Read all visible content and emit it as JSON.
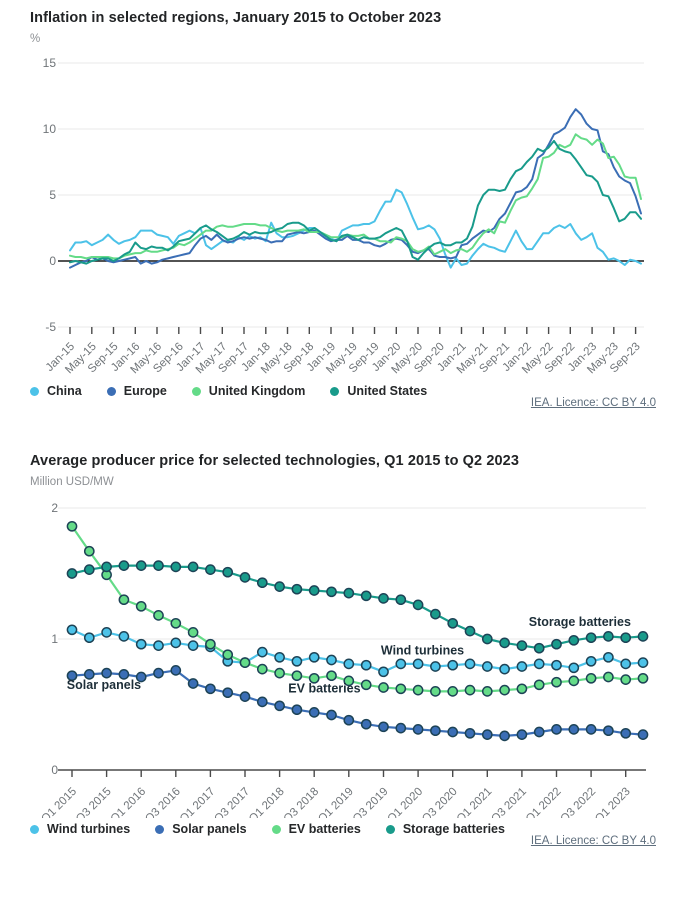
{
  "chart_data": [
    {
      "type": "line",
      "title": "Inflation in selected regions, January 2015 to October 2023",
      "unit": "%",
      "licence": "IEA. Licence: CC BY 4.0",
      "ylim": [
        -5,
        15
      ],
      "yticks": [
        15,
        10,
        5,
        0,
        -5
      ],
      "x_tick_step": 4,
      "n_points": 106,
      "x_labels": [
        "Jan-15",
        "May-15",
        "Sep-15",
        "Jan-16",
        "May-16",
        "Sep-16",
        "Jan-17",
        "May-17",
        "Sep-17",
        "Jan-18",
        "May-18",
        "Sep-18",
        "Jan-19",
        "May-19",
        "Sep-19",
        "Jan-20",
        "May-20",
        "Sep-20",
        "Jan-21",
        "May-21",
        "Sep-21",
        "Jan-22",
        "May-22",
        "Sep-22",
        "Jan-23",
        "May-23",
        "Sep-23"
      ],
      "grid": true,
      "legend_position": "bottom",
      "series": [
        {
          "name": "China",
          "color": "#4CC2E8",
          "values": [
            0.8,
            1.4,
            1.4,
            1.5,
            1.2,
            1.4,
            1.6,
            2.0,
            1.6,
            1.3,
            1.5,
            1.6,
            1.8,
            2.3,
            2.3,
            2.3,
            2.0,
            1.9,
            1.8,
            1.3,
            1.9,
            2.1,
            2.3,
            2.1,
            2.5,
            1.2,
            0.9,
            1.2,
            1.5,
            1.5,
            1.4,
            1.8,
            1.6,
            1.9,
            1.7,
            1.8,
            1.5,
            2.9,
            2.1,
            1.8,
            1.8,
            1.9,
            2.1,
            2.3,
            2.5,
            2.5,
            2.2,
            1.9,
            1.7,
            1.5,
            2.3,
            2.5,
            2.7,
            2.7,
            2.8,
            2.8,
            3.0,
            3.8,
            4.5,
            4.5,
            5.4,
            5.2,
            4.3,
            3.3,
            2.4,
            2.5,
            2.7,
            2.4,
            1.7,
            0.5,
            -0.5,
            0.2,
            -0.3,
            -0.2,
            0.4,
            0.9,
            1.3,
            1.1,
            1.0,
            0.8,
            0.7,
            1.5,
            2.3,
            1.5,
            0.9,
            0.9,
            1.5,
            2.1,
            2.1,
            2.5,
            2.7,
            2.5,
            2.8,
            2.1,
            1.6,
            1.8,
            2.1,
            1.0,
            0.7,
            0.1,
            0.2,
            0.0,
            -0.3,
            0.1,
            0.0,
            -0.2
          ]
        },
        {
          "name": "Europe",
          "color": "#3B6EB5",
          "values": [
            -0.5,
            -0.3,
            -0.1,
            0.0,
            0.3,
            0.1,
            0.2,
            0.0,
            -0.1,
            0.0,
            0.1,
            0.2,
            0.3,
            -0.2,
            0.0,
            -0.2,
            -0.1,
            0.1,
            0.2,
            0.3,
            0.4,
            0.5,
            0.6,
            1.2,
            1.7,
            1.9,
            1.6,
            2.0,
            1.6,
            1.4,
            1.5,
            1.7,
            1.8,
            1.7,
            1.8,
            1.7,
            1.6,
            1.4,
            1.5,
            1.5,
            2.0,
            2.1,
            2.2,
            2.1,
            2.2,
            2.3,
            2.0,
            1.7,
            1.5,
            1.6,
            1.6,
            1.9,
            1.6,
            1.6,
            1.4,
            1.4,
            1.2,
            1.1,
            1.3,
            1.6,
            1.7,
            1.6,
            1.2,
            0.7,
            0.6,
            0.8,
            0.9,
            0.4,
            0.3,
            0.3,
            0.2,
            0.3,
            1.2,
            1.3,
            1.7,
            2.0,
            2.3,
            2.2,
            2.5,
            3.2,
            3.6,
            4.4,
            5.2,
            5.3,
            5.6,
            6.2,
            7.8,
            8.1,
            8.8,
            9.6,
            9.8,
            10.1,
            10.9,
            11.5,
            11.1,
            10.4,
            10.0,
            9.9,
            8.3,
            8.1,
            7.1,
            6.4,
            6.1,
            5.9,
            4.9,
            3.6
          ]
        },
        {
          "name": "United Kingdom",
          "color": "#64DB88",
          "values": [
            0.4,
            0.3,
            0.3,
            0.2,
            0.3,
            0.3,
            0.3,
            0.3,
            0.2,
            0.2,
            0.4,
            0.5,
            0.6,
            0.6,
            0.8,
            0.7,
            0.7,
            0.8,
            0.9,
            1.0,
            1.3,
            1.2,
            1.4,
            1.7,
            2.0,
            2.3,
            2.3,
            2.6,
            2.7,
            2.6,
            2.6,
            2.7,
            2.8,
            2.8,
            2.8,
            2.7,
            2.7,
            2.5,
            2.3,
            2.2,
            2.3,
            2.3,
            2.3,
            2.4,
            2.2,
            2.2,
            2.2,
            2.0,
            1.8,
            1.8,
            1.8,
            2.0,
            1.9,
            1.9,
            2.0,
            1.7,
            1.7,
            1.5,
            1.5,
            1.4,
            1.8,
            1.7,
            1.5,
            0.9,
            0.7,
            0.8,
            1.1,
            0.5,
            0.7,
            0.9,
            0.6,
            0.8,
            0.9,
            0.7,
            1.0,
            1.6,
            2.1,
            2.4,
            2.1,
            3.0,
            2.9,
            3.8,
            4.6,
            4.8,
            4.9,
            5.5,
            6.2,
            7.8,
            7.9,
            8.2,
            8.8,
            8.6,
            8.8,
            9.6,
            9.3,
            9.2,
            8.8,
            9.2,
            8.9,
            7.8,
            7.9,
            7.3,
            6.4,
            6.3,
            6.3,
            4.7
          ]
        },
        {
          "name": "United States",
          "color": "#199B8B",
          "values": [
            -0.1,
            0.0,
            -0.1,
            -0.2,
            0.0,
            0.1,
            0.2,
            0.2,
            0.0,
            0.2,
            0.5,
            0.7,
            1.4,
            1.0,
            0.9,
            1.1,
            1.0,
            1.0,
            0.8,
            1.1,
            1.5,
            1.6,
            1.7,
            2.1,
            2.5,
            2.7,
            2.4,
            2.2,
            1.9,
            1.6,
            1.7,
            1.9,
            2.2,
            2.0,
            2.2,
            2.1,
            2.1,
            2.2,
            2.4,
            2.5,
            2.8,
            2.9,
            2.9,
            2.7,
            2.3,
            2.5,
            2.2,
            1.9,
            1.6,
            1.5,
            1.9,
            2.0,
            1.8,
            1.6,
            1.8,
            1.7,
            1.7,
            1.8,
            2.1,
            2.3,
            2.5,
            2.3,
            1.5,
            0.3,
            0.1,
            0.6,
            1.0,
            1.3,
            1.4,
            1.2,
            1.2,
            1.4,
            1.4,
            1.7,
            2.6,
            4.2,
            5.0,
            5.4,
            5.4,
            5.3,
            5.4,
            6.2,
            6.8,
            7.0,
            7.5,
            7.9,
            8.5,
            8.3,
            8.6,
            9.1,
            8.5,
            8.3,
            8.2,
            7.7,
            7.1,
            6.5,
            6.4,
            6.0,
            5.0,
            4.9,
            4.0,
            3.0,
            3.2,
            3.7,
            3.7,
            3.2
          ]
        }
      ]
    },
    {
      "type": "line",
      "title": "Average producer price for selected technologies, Q1 2015 to Q2 2023",
      "unit": "Million USD/MW",
      "licence": "IEA. Licence: CC BY 4.0",
      "ylim": [
        0,
        2
      ],
      "yticks": [
        2,
        1,
        0
      ],
      "x_tick_step": 2,
      "n_points": 34,
      "markers": true,
      "x_labels": [
        "Q1 2015",
        "Q3 2015",
        "Q1 2016",
        "Q3 2016",
        "Q1 2017",
        "Q3 2017",
        "Q1 2018",
        "Q3 2018",
        "Q1 2019",
        "Q3 2019",
        "Q1 2020",
        "Q3 2020",
        "Q1 2021",
        "Q3 2021",
        "Q1 2022",
        "Q3 2022",
        "Q1 2023"
      ],
      "grid": true,
      "legend_position": "bottom",
      "series": [
        {
          "name": "Wind turbines",
          "color": "#4CC2E8",
          "values": [
            1.07,
            1.01,
            1.05,
            1.02,
            0.96,
            0.95,
            0.97,
            0.95,
            0.94,
            0.83,
            0.82,
            0.9,
            0.86,
            0.83,
            0.86,
            0.84,
            0.81,
            0.8,
            0.75,
            0.81,
            0.81,
            0.79,
            0.8,
            0.81,
            0.79,
            0.77,
            0.79,
            0.81,
            0.8,
            0.78,
            0.83,
            0.86,
            0.81,
            0.82
          ]
        },
        {
          "name": "Solar panels",
          "color": "#3B6EB5",
          "values": [
            0.72,
            0.73,
            0.74,
            0.73,
            0.71,
            0.74,
            0.76,
            0.66,
            0.62,
            0.59,
            0.56,
            0.52,
            0.49,
            0.46,
            0.44,
            0.42,
            0.38,
            0.35,
            0.33,
            0.32,
            0.31,
            0.3,
            0.29,
            0.28,
            0.27,
            0.26,
            0.27,
            0.29,
            0.31,
            0.31,
            0.31,
            0.3,
            0.28,
            0.27
          ]
        },
        {
          "name": "EV batteries",
          "color": "#64DB88",
          "values": [
            1.86,
            1.67,
            1.49,
            1.3,
            1.25,
            1.18,
            1.12,
            1.05,
            0.96,
            0.88,
            0.82,
            0.77,
            0.74,
            0.72,
            0.7,
            0.72,
            0.68,
            0.65,
            0.63,
            0.62,
            0.61,
            0.6,
            0.6,
            0.61,
            0.6,
            0.61,
            0.62,
            0.65,
            0.67,
            0.68,
            0.7,
            0.71,
            0.69,
            0.7
          ]
        },
        {
          "name": "Storage batteries",
          "color": "#199B8B",
          "values": [
            1.5,
            1.53,
            1.55,
            1.56,
            1.56,
            1.56,
            1.55,
            1.55,
            1.53,
            1.51,
            1.47,
            1.43,
            1.4,
            1.38,
            1.37,
            1.36,
            1.35,
            1.33,
            1.31,
            1.3,
            1.26,
            1.19,
            1.12,
            1.06,
            1.0,
            0.97,
            0.95,
            0.93,
            0.96,
            0.99,
            1.01,
            1.02,
            1.01,
            1.02
          ]
        }
      ],
      "annotations": [
        {
          "text": "Solar panels",
          "xi": -0.3,
          "v": 0.62
        },
        {
          "text": "EV batteries",
          "xi": 12.5,
          "v": 0.59
        },
        {
          "text": "Wind turbines",
          "xi": 17.85,
          "v": 0.88
        },
        {
          "text": "Storage batteries",
          "xi": 26.4,
          "v": 1.1
        }
      ]
    }
  ]
}
